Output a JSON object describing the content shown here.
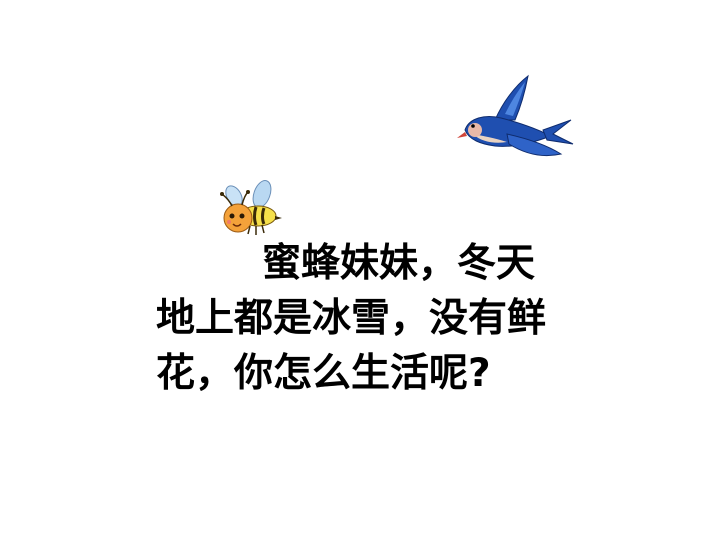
{
  "colors": {
    "background": "#ffffff",
    "text": "#000000",
    "swallow_blue": "#1f4fb0",
    "swallow_light": "#4e86e0",
    "bee_orange": "#f4a23a",
    "bee_yellow": "#f6e04a",
    "bee_wing": "#b9d8f2"
  },
  "illustrations": {
    "swallow": "swallow-icon",
    "bee": "bee-icon"
  },
  "dialogue": {
    "lines": [
      "蜜蜂妹妹，冬天",
      "地上都是冰雪，没有鲜",
      "花，你怎么生活呢?"
    ]
  }
}
